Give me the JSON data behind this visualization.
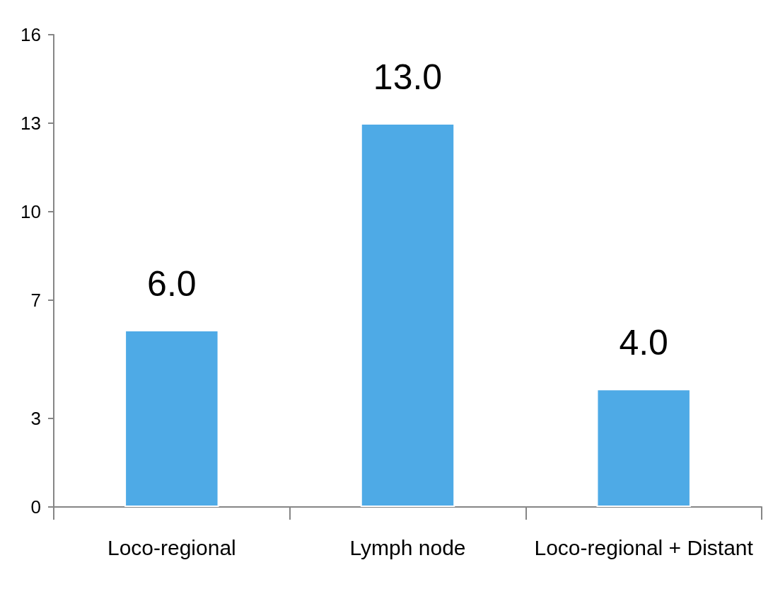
{
  "chart_data": {
    "type": "bar",
    "categories": [
      "Loco-regional",
      "Lymph node",
      "Loco-regional + Distant"
    ],
    "values": [
      6,
      13,
      4
    ],
    "value_labels": [
      "6.0",
      "13.0",
      "4.0"
    ],
    "color": "#4eaae6",
    "ylim": [
      0,
      16
    ],
    "yticks": [
      0,
      3,
      7,
      10,
      13,
      16
    ],
    "grid": false
  }
}
